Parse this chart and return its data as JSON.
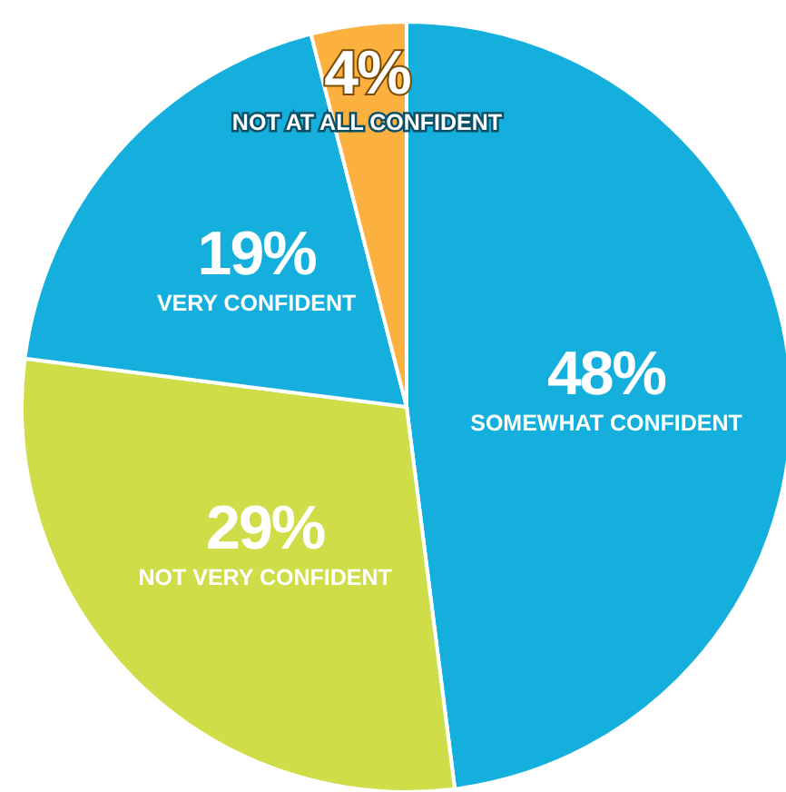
{
  "chart_data": {
    "type": "pie",
    "categories": [
      "SOMEWHAT CONFIDENT",
      "NOT VERY CONFIDENT",
      "VERY CONFIDENT",
      "NOT AT ALL CONFIDENT"
    ],
    "values": [
      48,
      29,
      19,
      4
    ],
    "colors": [
      "#14afdc",
      "#cedd48",
      "#14afdc",
      "#fbb03f"
    ],
    "value_labels": [
      "48%",
      "29%",
      "19%",
      "4%"
    ]
  }
}
